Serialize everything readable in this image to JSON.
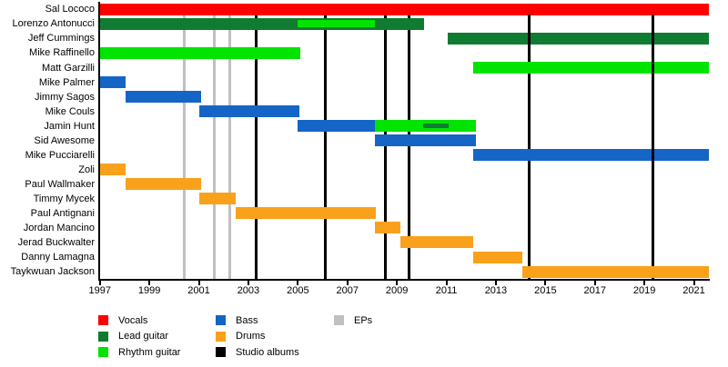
{
  "chart_data": {
    "type": "bar",
    "subtype": "band-members-gantt-timeline",
    "title": "",
    "grid": "vertical-event-lines",
    "legend_position": "bottom",
    "x_axis": {
      "start": 1997.0,
      "end": 2021.6,
      "tick_labels": [
        "1997",
        "1999",
        "2001",
        "2003",
        "2005",
        "2007",
        "2009",
        "2011",
        "2013",
        "2015",
        "2017",
        "2019",
        "2021"
      ],
      "tick_years": [
        1997,
        1999,
        2001,
        2003,
        2005,
        2007,
        2009,
        2011,
        2013,
        2015,
        2017,
        2019,
        2021
      ]
    },
    "roles": {
      "Vocals": "#FE0000",
      "Lead guitar": "#0F7C31",
      "Rhythm guitar": "#00E400",
      "Bass": "#1565C7",
      "Drums": "#F9A11B"
    },
    "event_colors": {
      "EPs": "#C0C0C0",
      "Studio albums": "#000000"
    },
    "members": [
      {
        "name": "Sal Lococo",
        "segments": [
          {
            "role": "Vocals",
            "from": 1997.0,
            "to": 2021.6
          }
        ]
      },
      {
        "name": "Lorenzo Antonucci",
        "segments": [
          {
            "role": "Lead guitar",
            "from": 1997.0,
            "to": 2010.1
          }
        ],
        "overlays": [
          {
            "role": "Rhythm guitar",
            "from": 2005.0,
            "to": 2008.1,
            "size": "medium"
          }
        ]
      },
      {
        "name": "Jeff Cummings",
        "segments": [
          {
            "role": "Lead guitar",
            "from": 2011.05,
            "to": 2021.6
          }
        ]
      },
      {
        "name": "Mike Raffinello",
        "segments": [
          {
            "role": "Rhythm guitar",
            "from": 1997.0,
            "to": 2005.1
          }
        ]
      },
      {
        "name": "Matt Garzilli",
        "segments": [
          {
            "role": "Rhythm guitar",
            "from": 2012.1,
            "to": 2021.6
          }
        ]
      },
      {
        "name": "Mike Palmer",
        "segments": [
          {
            "role": "Bass",
            "from": 1997.0,
            "to": 1998.05
          }
        ]
      },
      {
        "name": "Jimmy Sagos",
        "segments": [
          {
            "role": "Bass",
            "from": 1998.05,
            "to": 2001.1
          }
        ]
      },
      {
        "name": "Mike Couls",
        "segments": [
          {
            "role": "Bass",
            "from": 2001.0,
            "to": 2005.05
          }
        ]
      },
      {
        "name": "Jamin Hunt",
        "segments": [
          {
            "role": "Bass",
            "from": 2005.0,
            "to": 2008.1
          },
          {
            "role": "Rhythm guitar",
            "from": 2008.1,
            "to": 2012.2
          }
        ],
        "overlays": [
          {
            "role": "Lead guitar",
            "from": 2010.05,
            "to": 2011.1,
            "size": "small"
          }
        ]
      },
      {
        "name": "Sid Awesome",
        "segments": [
          {
            "role": "Bass",
            "from": 2008.1,
            "to": 2012.2
          }
        ]
      },
      {
        "name": "Mike Pucciarelli",
        "segments": [
          {
            "role": "Bass",
            "from": 2012.1,
            "to": 2021.6
          }
        ]
      },
      {
        "name": "Zoli",
        "segments": [
          {
            "role": "Drums",
            "from": 1997.0,
            "to": 1998.05
          }
        ]
      },
      {
        "name": "Paul Wallmaker",
        "segments": [
          {
            "role": "Drums",
            "from": 1998.05,
            "to": 2001.1
          }
        ]
      },
      {
        "name": "Timmy Mycek",
        "segments": [
          {
            "role": "Drums",
            "from": 2001.0,
            "to": 2002.5
          }
        ]
      },
      {
        "name": "Paul Antignani",
        "segments": [
          {
            "role": "Drums",
            "from": 2002.5,
            "to": 2008.15
          }
        ]
      },
      {
        "name": "Jordan Mancino",
        "segments": [
          {
            "role": "Drums",
            "from": 2008.1,
            "to": 2009.15
          }
        ]
      },
      {
        "name": "Jerad Buckwalter",
        "segments": [
          {
            "role": "Drums",
            "from": 2009.15,
            "to": 2012.1
          }
        ]
      },
      {
        "name": "Danny Lamagna",
        "segments": [
          {
            "role": "Drums",
            "from": 2012.1,
            "to": 2014.05
          }
        ]
      },
      {
        "name": "Taykwuan Jackson",
        "segments": [
          {
            "role": "Drums",
            "from": 2014.05,
            "to": 2021.6
          }
        ]
      }
    ],
    "events": {
      "EPs": [
        2000.42,
        2001.63,
        2002.26
      ],
      "Studio albums": [
        2003.3,
        2006.12,
        2008.53,
        2009.5,
        2014.35,
        2019.35
      ]
    },
    "legend": [
      {
        "label": "Vocals",
        "color": "#FE0000"
      },
      {
        "label": "Lead guitar",
        "color": "#0F7C31"
      },
      {
        "label": "Rhythm guitar",
        "color": "#00E400"
      },
      {
        "label": "Bass",
        "color": "#1565C7"
      },
      {
        "label": "Drums",
        "color": "#F9A11B"
      },
      {
        "label": "EPs",
        "color": "#C0C0C0"
      },
      {
        "label": "Studio albums",
        "color": "#000000"
      }
    ]
  }
}
